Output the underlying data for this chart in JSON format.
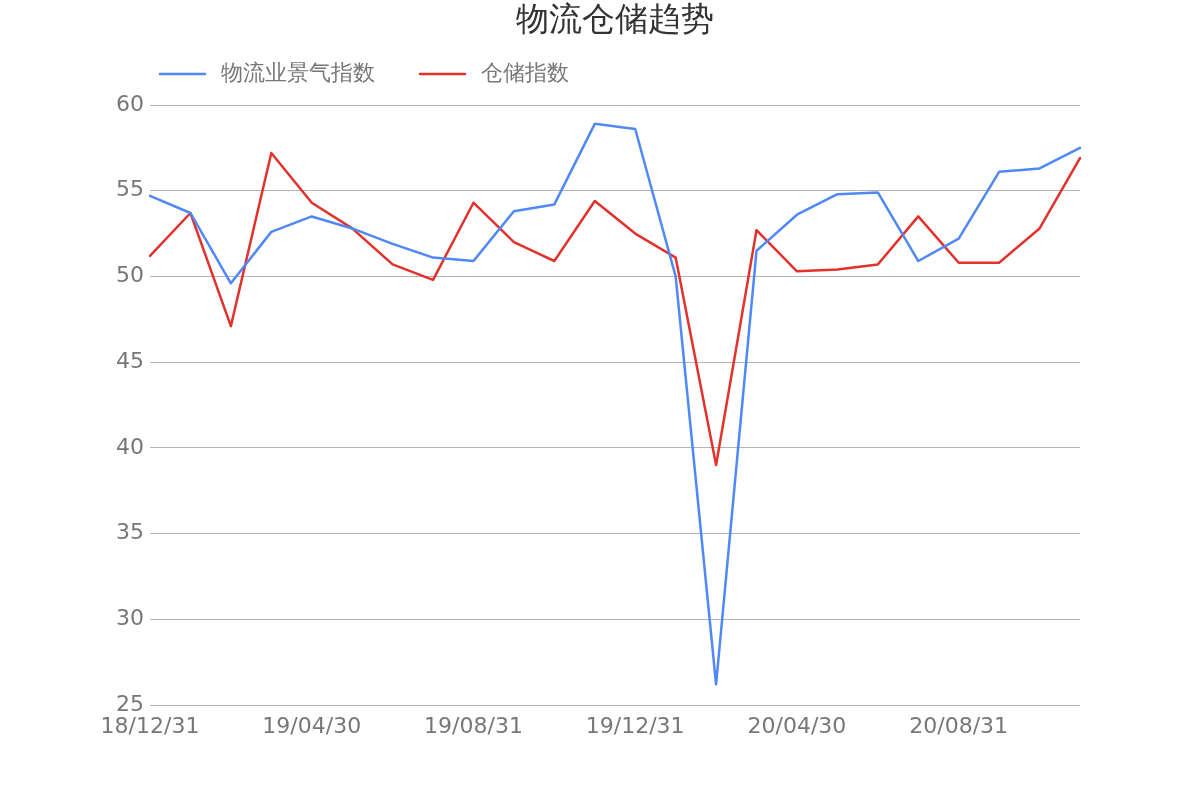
{
  "chart_data": {
    "type": "line",
    "title": "物流仓储趋势",
    "categories": [
      "18/12/31",
      null,
      null,
      null,
      "19/04/30",
      null,
      null,
      null,
      "19/08/31",
      null,
      null,
      null,
      "19/12/31",
      null,
      null,
      null,
      "20/04/30",
      null,
      null,
      null,
      "20/08/31",
      null,
      null,
      null
    ],
    "series": [
      {
        "name": "物流业景气指数",
        "color": "#5089f6",
        "values": [
          54.7,
          53.7,
          49.6,
          52.6,
          53.5,
          52.8,
          51.9,
          51.1,
          50.9,
          53.8,
          54.2,
          58.9,
          58.6,
          50.0,
          26.2,
          51.5,
          53.6,
          54.8,
          54.9,
          50.9,
          52.2,
          56.1,
          56.3,
          57.5
        ]
      },
      {
        "name": "仓储指数",
        "color": "#e3312c",
        "values": [
          51.2,
          53.7,
          47.1,
          57.2,
          54.3,
          52.8,
          50.7,
          49.8,
          54.3,
          52.0,
          50.9,
          54.4,
          52.5,
          51.1,
          39.0,
          52.7,
          50.3,
          50.4,
          50.7,
          53.5,
          50.8,
          50.8,
          52.8,
          56.9
        ]
      }
    ],
    "ylim": [
      25,
      60
    ],
    "yticks": [
      25,
      30,
      35,
      40,
      45,
      50,
      55,
      60
    ],
    "grid": "y",
    "legend": "top left",
    "marker": "none",
    "line_style": "solid"
  }
}
